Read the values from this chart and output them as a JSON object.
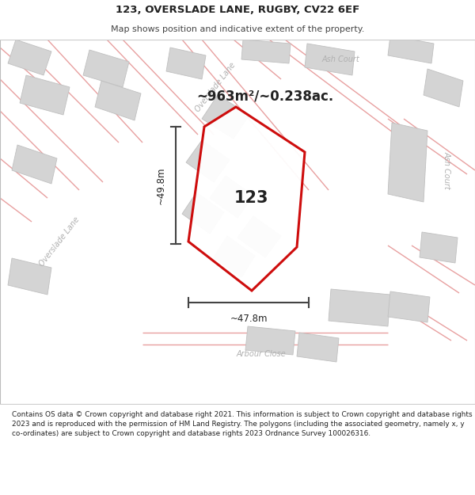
{
  "title_line1": "123, OVERSLADE LANE, RUGBY, CV22 6EF",
  "title_line2": "Map shows position and indicative extent of the property.",
  "footer_text": "Contains OS data © Crown copyright and database right 2021. This information is subject to Crown copyright and database rights 2023 and is reproduced with the permission of HM Land Registry. The polygons (including the associated geometry, namely x, y co-ordinates) are subject to Crown copyright and database rights 2023 Ordnance Survey 100026316.",
  "area_label": "~963m²/~0.238ac.",
  "label_123": "123",
  "dim_vertical": "~49.8m",
  "dim_horizontal": "~47.8m",
  "map_bg": "#f8f8f8",
  "property_color": "#cc0000",
  "building_fill": "#d4d4d4",
  "building_edge": "#c0c0c0",
  "road_line_color": "#e8a0a0",
  "road_outline_color": "#d0b0b0",
  "dim_line_color": "#444444",
  "street_text_color": "#b0b0b0",
  "title_color": "#222222",
  "footer_color": "#222222"
}
